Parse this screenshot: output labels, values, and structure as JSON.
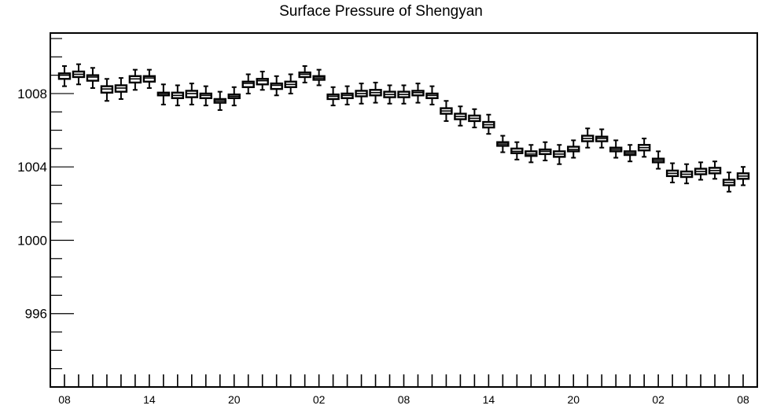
{
  "chart_data": {
    "type": "boxplot",
    "title": "Surface Pressure of Shengyan",
    "xlabel": "",
    "ylabel": "",
    "ylim": [
      992,
      1011.3
    ],
    "yticks": [
      996,
      1000,
      1004,
      1008
    ],
    "xticks": [
      {
        "step": 0,
        "label": "08"
      },
      {
        "step": 6,
        "label": "14"
      },
      {
        "step": 12,
        "label": "20"
      },
      {
        "step": 18,
        "label": "02"
      },
      {
        "step": 24,
        "label": "08"
      },
      {
        "step": 30,
        "label": "14"
      },
      {
        "step": 36,
        "label": "20"
      },
      {
        "step": 42,
        "label": "02"
      },
      {
        "step": 48,
        "label": "08"
      }
    ],
    "xlim": [
      -1,
      49
    ],
    "grid": false,
    "boxes": [
      {
        "x": 0,
        "whislo": 1008.4,
        "q1": 1008.8,
        "med": 1009.0,
        "q3": 1009.1,
        "whishi": 1009.5
      },
      {
        "x": 1,
        "whislo": 1008.5,
        "q1": 1008.9,
        "med": 1009.05,
        "q3": 1009.2,
        "whishi": 1009.6
      },
      {
        "x": 2,
        "whislo": 1008.3,
        "q1": 1008.7,
        "med": 1008.9,
        "q3": 1009.0,
        "whishi": 1009.4
      },
      {
        "x": 3,
        "whislo": 1007.6,
        "q1": 1008.05,
        "med": 1008.25,
        "q3": 1008.4,
        "whishi": 1008.8
      },
      {
        "x": 4,
        "whislo": 1007.7,
        "q1": 1008.1,
        "med": 1008.3,
        "q3": 1008.45,
        "whishi": 1008.85
      },
      {
        "x": 5,
        "whislo": 1008.2,
        "q1": 1008.6,
        "med": 1008.8,
        "q3": 1008.95,
        "whishi": 1009.3
      },
      {
        "x": 6,
        "whislo": 1008.3,
        "q1": 1008.65,
        "med": 1008.85,
        "q3": 1008.95,
        "whishi": 1009.3
      },
      {
        "x": 7,
        "whislo": 1007.4,
        "q1": 1007.9,
        "med": 1008.0,
        "q3": 1008.05,
        "whishi": 1008.5
      },
      {
        "x": 8,
        "whislo": 1007.35,
        "q1": 1007.75,
        "med": 1007.9,
        "q3": 1008.05,
        "whishi": 1008.45
      },
      {
        "x": 9,
        "whislo": 1007.4,
        "q1": 1007.8,
        "med": 1008.0,
        "q3": 1008.15,
        "whishi": 1008.55
      },
      {
        "x": 10,
        "whislo": 1007.35,
        "q1": 1007.75,
        "med": 1007.9,
        "q3": 1008.0,
        "whishi": 1008.4
      },
      {
        "x": 11,
        "whislo": 1007.1,
        "q1": 1007.5,
        "med": 1007.6,
        "q3": 1007.7,
        "whishi": 1008.1
      },
      {
        "x": 12,
        "whislo": 1007.35,
        "q1": 1007.75,
        "med": 1007.85,
        "q3": 1007.95,
        "whishi": 1008.35
      },
      {
        "x": 13,
        "whislo": 1008.0,
        "q1": 1008.35,
        "med": 1008.55,
        "q3": 1008.65,
        "whishi": 1009.05
      },
      {
        "x": 14,
        "whislo": 1008.2,
        "q1": 1008.5,
        "med": 1008.7,
        "q3": 1008.8,
        "whishi": 1009.2
      },
      {
        "x": 15,
        "whislo": 1007.9,
        "q1": 1008.25,
        "med": 1008.45,
        "q3": 1008.55,
        "whishi": 1008.95
      },
      {
        "x": 16,
        "whislo": 1008.0,
        "q1": 1008.35,
        "med": 1008.5,
        "q3": 1008.65,
        "whishi": 1009.05
      },
      {
        "x": 17,
        "whislo": 1008.6,
        "q1": 1008.9,
        "med": 1009.05,
        "q3": 1009.15,
        "whishi": 1009.5
      },
      {
        "x": 18,
        "whislo": 1008.45,
        "q1": 1008.75,
        "med": 1008.85,
        "q3": 1008.95,
        "whishi": 1009.3
      },
      {
        "x": 19,
        "whislo": 1007.35,
        "q1": 1007.7,
        "med": 1007.85,
        "q3": 1007.95,
        "whishi": 1008.35
      },
      {
        "x": 20,
        "whislo": 1007.4,
        "q1": 1007.75,
        "med": 1007.9,
        "q3": 1008.0,
        "whishi": 1008.4
      },
      {
        "x": 21,
        "whislo": 1007.45,
        "q1": 1007.85,
        "med": 1008.0,
        "q3": 1008.15,
        "whishi": 1008.55
      },
      {
        "x": 22,
        "whislo": 1007.5,
        "q1": 1007.9,
        "med": 1008.05,
        "q3": 1008.2,
        "whishi": 1008.6
      },
      {
        "x": 23,
        "whislo": 1007.45,
        "q1": 1007.8,
        "med": 1007.95,
        "q3": 1008.1,
        "whishi": 1008.45
      },
      {
        "x": 24,
        "whislo": 1007.45,
        "q1": 1007.8,
        "med": 1007.95,
        "q3": 1008.1,
        "whishi": 1008.45
      },
      {
        "x": 25,
        "whislo": 1007.5,
        "q1": 1007.9,
        "med": 1008.05,
        "q3": 1008.15,
        "whishi": 1008.55
      },
      {
        "x": 26,
        "whislo": 1007.4,
        "q1": 1007.75,
        "med": 1007.9,
        "q3": 1008.0,
        "whishi": 1008.4
      },
      {
        "x": 27,
        "whislo": 1006.5,
        "q1": 1006.9,
        "med": 1007.05,
        "q3": 1007.2,
        "whishi": 1007.6
      },
      {
        "x": 28,
        "whislo": 1006.25,
        "q1": 1006.6,
        "med": 1006.75,
        "q3": 1006.9,
        "whishi": 1007.3
      },
      {
        "x": 29,
        "whislo": 1006.15,
        "q1": 1006.5,
        "med": 1006.65,
        "q3": 1006.8,
        "whishi": 1007.15
      },
      {
        "x": 30,
        "whislo": 1005.8,
        "q1": 1006.15,
        "med": 1006.3,
        "q3": 1006.45,
        "whishi": 1006.85
      },
      {
        "x": 31,
        "whislo": 1004.8,
        "q1": 1005.15,
        "med": 1005.25,
        "q3": 1005.35,
        "whishi": 1005.7
      },
      {
        "x": 32,
        "whislo": 1004.4,
        "q1": 1004.75,
        "med": 1004.85,
        "q3": 1005.0,
        "whishi": 1005.35
      },
      {
        "x": 33,
        "whislo": 1004.25,
        "q1": 1004.6,
        "med": 1004.7,
        "q3": 1004.85,
        "whishi": 1005.2
      },
      {
        "x": 34,
        "whislo": 1004.35,
        "q1": 1004.7,
        "med": 1004.85,
        "q3": 1004.95,
        "whishi": 1005.35
      },
      {
        "x": 35,
        "whislo": 1004.15,
        "q1": 1004.55,
        "med": 1004.7,
        "q3": 1004.85,
        "whishi": 1005.2
      },
      {
        "x": 36,
        "whislo": 1004.5,
        "q1": 1004.85,
        "med": 1004.95,
        "q3": 1005.1,
        "whishi": 1005.45
      },
      {
        "x": 37,
        "whislo": 1005.05,
        "q1": 1005.4,
        "med": 1005.55,
        "q3": 1005.7,
        "whishi": 1006.1
      },
      {
        "x": 38,
        "whislo": 1005.05,
        "q1": 1005.4,
        "med": 1005.55,
        "q3": 1005.65,
        "whishi": 1006.05
      },
      {
        "x": 39,
        "whislo": 1004.5,
        "q1": 1004.85,
        "med": 1004.95,
        "q3": 1005.05,
        "whishi": 1005.45
      },
      {
        "x": 40,
        "whislo": 1004.3,
        "q1": 1004.65,
        "med": 1004.75,
        "q3": 1004.85,
        "whishi": 1005.2
      },
      {
        "x": 41,
        "whislo": 1004.55,
        "q1": 1004.9,
        "med": 1005.05,
        "q3": 1005.2,
        "whishi": 1005.55
      },
      {
        "x": 42,
        "whislo": 1003.9,
        "q1": 1004.25,
        "med": 1004.35,
        "q3": 1004.45,
        "whishi": 1004.85
      },
      {
        "x": 43,
        "whislo": 1003.15,
        "q1": 1003.5,
        "med": 1003.65,
        "q3": 1003.8,
        "whishi": 1004.2
      },
      {
        "x": 44,
        "whislo": 1003.1,
        "q1": 1003.45,
        "med": 1003.6,
        "q3": 1003.75,
        "whishi": 1004.15
      },
      {
        "x": 45,
        "whislo": 1003.3,
        "q1": 1003.6,
        "med": 1003.75,
        "q3": 1003.9,
        "whishi": 1004.25
      },
      {
        "x": 46,
        "whislo": 1003.35,
        "q1": 1003.65,
        "med": 1003.8,
        "q3": 1003.95,
        "whishi": 1004.3
      },
      {
        "x": 47,
        "whislo": 1002.65,
        "q1": 1003.0,
        "med": 1003.15,
        "q3": 1003.3,
        "whishi": 1003.7
      },
      {
        "x": 48,
        "whislo": 1003.0,
        "q1": 1003.35,
        "med": 1003.5,
        "q3": 1003.65,
        "whishi": 1004.0
      }
    ]
  }
}
